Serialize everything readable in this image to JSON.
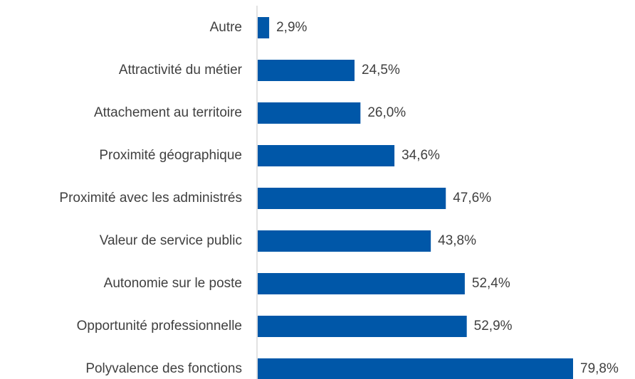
{
  "chart_data": {
    "type": "hbar",
    "categories": [
      "Autre",
      "Attractivité du métier",
      "Attachement au territoire",
      "Proximité géographique",
      "Proximité avec les administrés",
      "Valeur de service public",
      "Autonomie sur le poste",
      "Opportunité professionnelle",
      "Polyvalence des fonctions"
    ],
    "values": [
      2.9,
      24.5,
      26.0,
      34.6,
      47.6,
      43.8,
      52.4,
      52.9,
      79.8
    ],
    "value_labels": [
      "2,9%",
      "24,5%",
      "26,0%",
      "34,6%",
      "47,6%",
      "43,8%",
      "52,4%",
      "52,9%",
      "79,8%"
    ],
    "color": "#0057a8"
  }
}
